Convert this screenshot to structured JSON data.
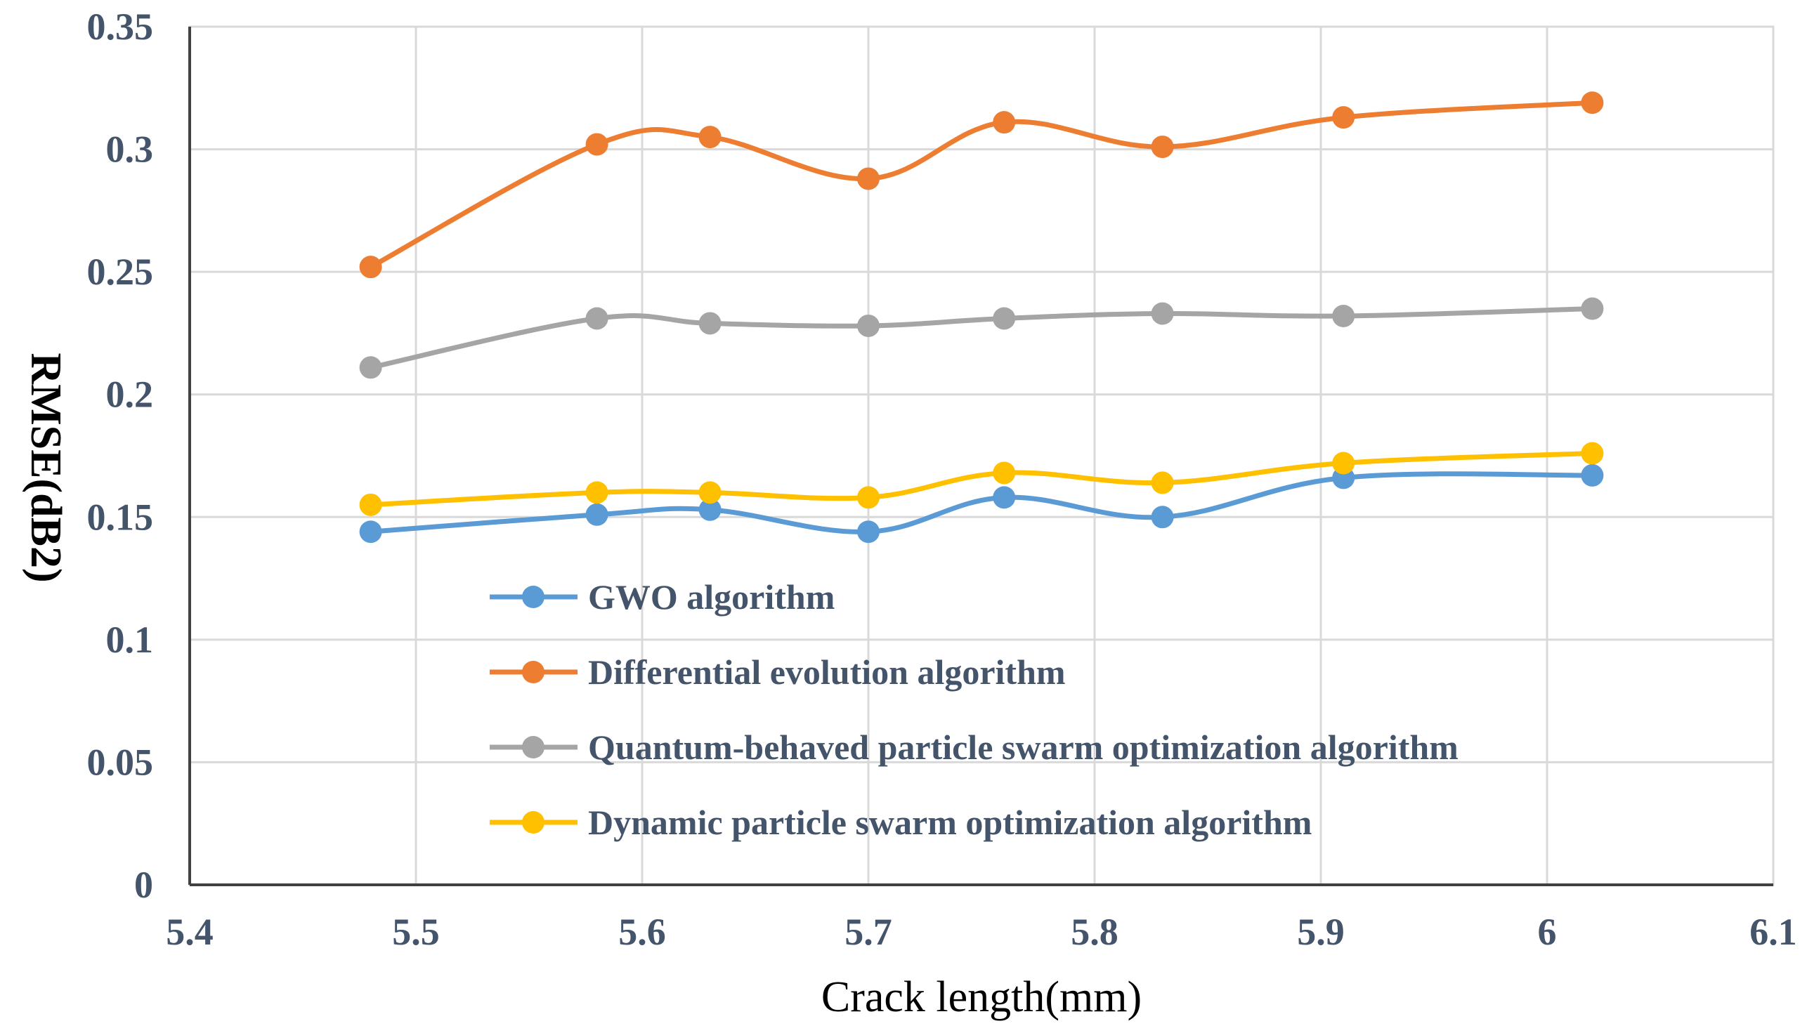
{
  "chart_data": {
    "type": "line",
    "title": "",
    "xlabel": "Crack length(mm)",
    "ylabel": "RMSE(dB2)",
    "xlim": [
      5.4,
      6.1
    ],
    "ylim": [
      0,
      0.35
    ],
    "xticks": [
      "5.4",
      "5.5",
      "5.6",
      "5.7",
      "5.8",
      "5.9",
      "6",
      "6.1"
    ],
    "yticks": [
      "0",
      "0.05",
      "0.1",
      "0.15",
      "0.2",
      "0.25",
      "0.3",
      "0.35"
    ],
    "grid": true,
    "legend_position": "lower-middle",
    "x": [
      5.48,
      5.58,
      5.63,
      5.7,
      5.76,
      5.83,
      5.91,
      6.02
    ],
    "series": [
      {
        "name": "GWO algorithm",
        "color": "#5b9bd5",
        "values": [
          0.144,
          0.151,
          0.153,
          0.144,
          0.158,
          0.15,
          0.166,
          0.167
        ]
      },
      {
        "name": "Differential evolution algorithm",
        "color": "#ed7d31",
        "values": [
          0.252,
          0.302,
          0.305,
          0.288,
          0.311,
          0.301,
          0.313,
          0.319
        ]
      },
      {
        "name": "Quantum-behaved particle swarm optimization algorithm",
        "color": "#a5a5a5",
        "values": [
          0.211,
          0.231,
          0.229,
          0.228,
          0.231,
          0.233,
          0.232,
          0.235
        ]
      },
      {
        "name": "Dynamic particle swarm optimization algorithm",
        "color": "#ffc000",
        "values": [
          0.155,
          0.16,
          0.16,
          0.158,
          0.168,
          0.164,
          0.172,
          0.176
        ]
      }
    ]
  }
}
